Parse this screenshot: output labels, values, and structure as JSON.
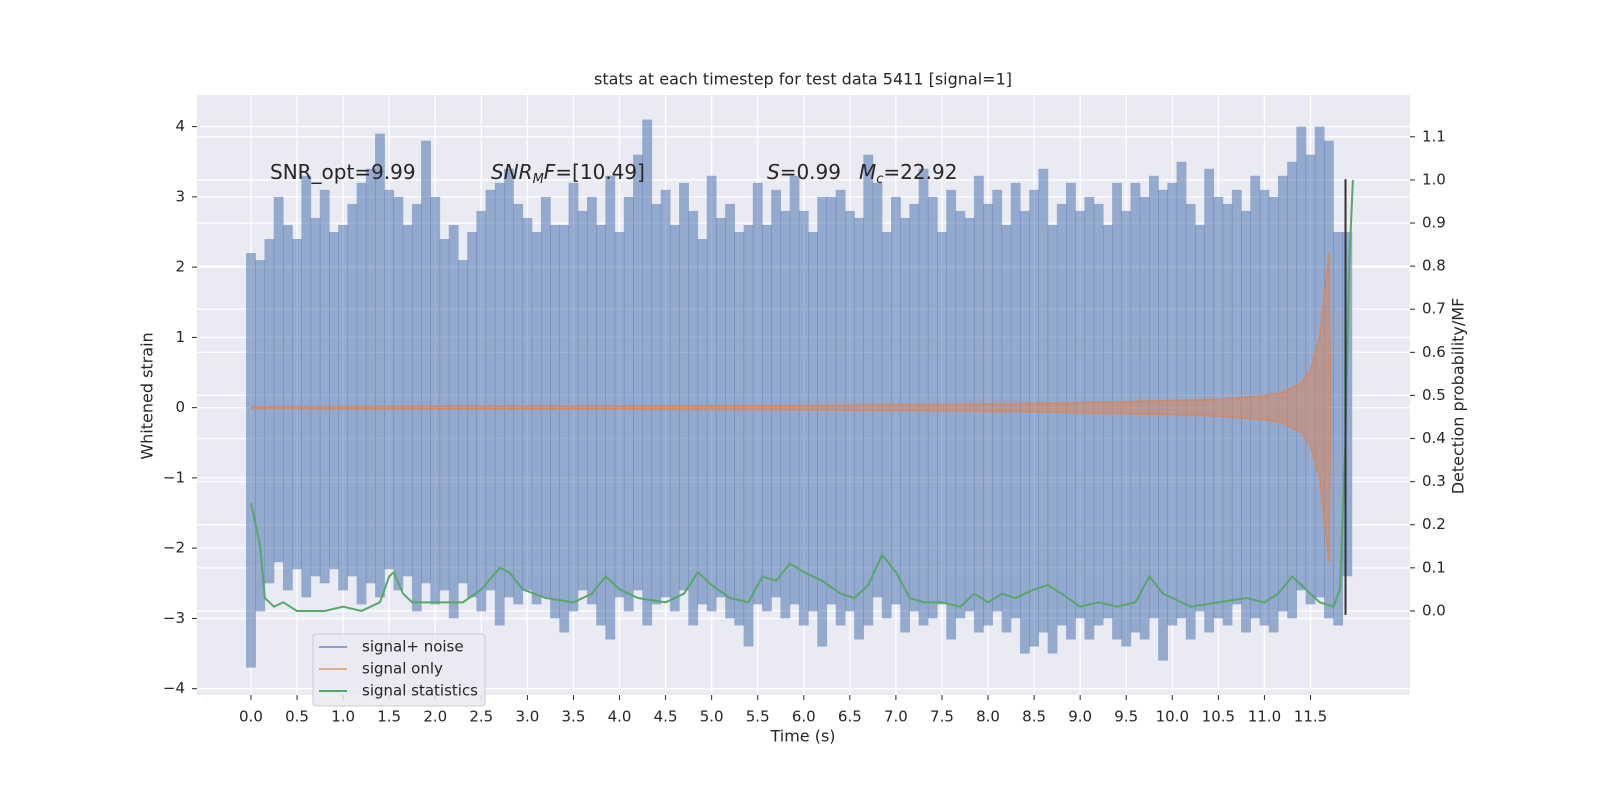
{
  "chart_data": {
    "type": "line",
    "title": "stats at each timestep for test data 5411 [signal=1]",
    "xlabel": "Time (s)",
    "ylabel": "Whitened strain",
    "y2label": "Detection probability/MF",
    "xlim": [
      -0.586,
      12.58
    ],
    "ylim": [
      -4.09,
      4.45
    ],
    "y2lim": [
      -0.195,
      1.197
    ],
    "xticks": [
      {
        "value": 0,
        "label": "0.0"
      },
      0.5,
      {
        "value": 1,
        "label": "1.0"
      },
      1.5,
      {
        "value": 2,
        "label": "2.0"
      },
      2.5,
      {
        "value": 3,
        "label": "3.0"
      },
      3.5,
      {
        "value": 4,
        "label": "4.0"
      },
      4.5,
      {
        "value": 5,
        "label": "5.0"
      },
      5.5,
      {
        "value": 6,
        "label": "6.0"
      },
      6.5,
      {
        "value": 7,
        "label": "7.0"
      },
      7.5,
      {
        "value": 8,
        "label": "8.0"
      },
      8.5,
      {
        "value": 9,
        "label": "9.0"
      },
      9.5,
      {
        "value": 10,
        "label": "10.0"
      },
      10.5,
      {
        "value": 11,
        "label": "11.0"
      },
      11.5
    ],
    "yticks": [
      {
        "value": -4,
        "label": "−4"
      },
      {
        "value": -3,
        "label": "−3"
      },
      {
        "value": -2,
        "label": "−2"
      },
      {
        "value": -1,
        "label": "−1"
      },
      0,
      1,
      2,
      3,
      4
    ],
    "y2ticks": [
      {
        "value": 0,
        "label": "0.0"
      },
      0.1,
      0.2,
      0.3,
      0.4,
      0.5,
      0.6,
      0.7,
      0.8,
      0.9,
      {
        "value": 1,
        "label": "1.0"
      },
      1.1
    ],
    "grid": true,
    "legend": "lower left",
    "annotations": [
      [
        {
          "text": "SNR_opt=9.99"
        }
      ],
      [
        {
          "text": "SNR",
          "italic": true
        },
        {
          "text": "M",
          "italic": true,
          "sub": true
        },
        {
          "text": "F",
          "italic": true
        },
        {
          "text": "=[10.49]"
        }
      ],
      [
        {
          "text": "S",
          "italic": true
        },
        {
          "text": "=0.99"
        }
      ],
      [
        {
          "text": "M",
          "italic": true
        },
        {
          "text": "c",
          "italic": true,
          "sub": true
        },
        {
          "text": "=22.92"
        }
      ]
    ],
    "vline": {
      "x": 11.88,
      "ymin": -2.95,
      "ymax": 3.25,
      "color": "#333333"
    },
    "series": [
      {
        "name": "signal+ noise",
        "color": "#4c72b0",
        "x": [
          0.0,
          0.1,
          0.2,
          0.3,
          0.4,
          0.5,
          0.6,
          0.7,
          0.8,
          0.9,
          1.0,
          1.1,
          1.2,
          1.3,
          1.4,
          1.5,
          1.6,
          1.7,
          1.8,
          1.9,
          2.0,
          2.1,
          2.2,
          2.3,
          2.4,
          2.5,
          2.6,
          2.7,
          2.8,
          2.9,
          3.0,
          3.1,
          3.2,
          3.3,
          3.4,
          3.5,
          3.6,
          3.7,
          3.8,
          3.9,
          4.0,
          4.1,
          4.2,
          4.3,
          4.4,
          4.5,
          4.6,
          4.7,
          4.8,
          4.9,
          5.0,
          5.1,
          5.2,
          5.3,
          5.4,
          5.5,
          5.6,
          5.7,
          5.8,
          5.9,
          6.0,
          6.1,
          6.2,
          6.3,
          6.4,
          6.5,
          6.6,
          6.7,
          6.8,
          6.9,
          7.0,
          7.1,
          7.2,
          7.3,
          7.4,
          7.5,
          7.6,
          7.7,
          7.8,
          7.9,
          8.0,
          8.1,
          8.2,
          8.3,
          8.4,
          8.5,
          8.6,
          8.7,
          8.8,
          8.9,
          9.0,
          9.1,
          9.2,
          9.3,
          9.4,
          9.5,
          9.6,
          9.7,
          9.8,
          9.9,
          10.0,
          10.1,
          10.2,
          10.3,
          10.4,
          10.5,
          10.6,
          10.7,
          10.8,
          10.9,
          11.0,
          11.1,
          11.2,
          11.3,
          11.4,
          11.5,
          11.6,
          11.7,
          11.8,
          11.9
        ],
        "max": [
          2.2,
          2.1,
          2.4,
          3.0,
          2.6,
          2.4,
          3.3,
          2.7,
          3.1,
          2.5,
          2.6,
          2.9,
          3.2,
          3.4,
          3.9,
          3.1,
          3.0,
          2.6,
          2.9,
          3.8,
          3.0,
          2.4,
          2.6,
          2.1,
          2.5,
          2.8,
          3.1,
          3.2,
          3.4,
          2.9,
          2.7,
          2.5,
          3.0,
          2.6,
          2.6,
          3.2,
          2.8,
          3.0,
          2.6,
          3.3,
          2.5,
          3.0,
          3.6,
          4.1,
          2.9,
          3.1,
          2.6,
          3.2,
          2.8,
          2.4,
          3.3,
          2.7,
          2.9,
          2.5,
          2.6,
          3.2,
          2.6,
          3.1,
          2.8,
          3.3,
          2.8,
          2.5,
          3.0,
          3.0,
          3.1,
          2.8,
          2.7,
          3.6,
          3.2,
          2.5,
          3.0,
          2.7,
          2.9,
          3.4,
          3.0,
          2.5,
          3.1,
          2.8,
          2.7,
          3.3,
          2.9,
          3.1,
          2.6,
          3.2,
          2.8,
          3.1,
          3.4,
          2.6,
          2.9,
          3.2,
          2.8,
          3.0,
          2.9,
          2.6,
          3.2,
          2.8,
          3.2,
          3.0,
          3.3,
          3.1,
          3.2,
          3.5,
          2.9,
          2.6,
          3.4,
          3.0,
          2.9,
          3.1,
          2.8,
          3.3,
          3.1,
          3.0,
          3.3,
          3.5,
          4.0,
          3.6,
          4.0,
          3.8,
          2.5,
          2.5
        ],
        "min": [
          -3.7,
          -2.9,
          -2.5,
          -2.2,
          -2.6,
          -2.3,
          -2.7,
          -2.4,
          -2.5,
          -2.3,
          -2.6,
          -2.4,
          -2.8,
          -2.5,
          -2.7,
          -2.3,
          -2.6,
          -2.4,
          -2.9,
          -2.5,
          -2.8,
          -2.6,
          -3.0,
          -2.5,
          -2.7,
          -2.9,
          -2.6,
          -3.1,
          -2.7,
          -2.8,
          -2.6,
          -2.8,
          -2.7,
          -3.0,
          -3.2,
          -2.9,
          -2.6,
          -2.8,
          -3.1,
          -3.3,
          -2.7,
          -2.9,
          -2.6,
          -3.1,
          -2.8,
          -2.7,
          -2.9,
          -2.6,
          -3.1,
          -2.8,
          -2.9,
          -2.7,
          -3.0,
          -3.1,
          -3.4,
          -2.8,
          -2.9,
          -2.7,
          -3.0,
          -2.8,
          -3.1,
          -2.9,
          -3.4,
          -2.8,
          -3.1,
          -2.9,
          -3.3,
          -3.1,
          -2.7,
          -3.0,
          -2.8,
          -3.2,
          -2.9,
          -3.1,
          -3.0,
          -2.8,
          -3.3,
          -3.0,
          -2.9,
          -3.2,
          -3.1,
          -2.9,
          -3.2,
          -3.0,
          -3.5,
          -3.4,
          -3.2,
          -3.5,
          -3.1,
          -3.3,
          -3.0,
          -3.3,
          -3.1,
          -3.0,
          -3.3,
          -3.4,
          -3.2,
          -3.3,
          -3.0,
          -3.6,
          -3.1,
          -3.0,
          -3.3,
          -2.9,
          -3.2,
          -3.0,
          -3.1,
          -2.8,
          -3.2,
          -3.0,
          -3.1,
          -3.2,
          -2.9,
          -3.0,
          -2.6,
          -2.8,
          -2.7,
          -3.0,
          -3.1,
          -2.4
        ]
      },
      {
        "name": "signal only",
        "color": "#dd8452",
        "x": [
          0,
          2,
          4,
          6,
          8,
          9,
          10,
          10.5,
          11,
          11.2,
          11.4,
          11.5,
          11.6,
          11.65,
          11.7,
          11.72
        ],
        "amplitude": [
          0.01,
          0.02,
          0.02,
          0.03,
          0.05,
          0.07,
          0.1,
          0.12,
          0.17,
          0.22,
          0.35,
          0.55,
          1.0,
          1.6,
          2.2,
          0
        ]
      },
      {
        "name": "signal statistics",
        "color": "#55a868",
        "axis": "y2",
        "x": [
          0.0,
          0.1,
          0.15,
          0.25,
          0.35,
          0.5,
          0.8,
          1.0,
          1.2,
          1.4,
          1.5,
          1.55,
          1.65,
          1.75,
          2.0,
          2.3,
          2.5,
          2.7,
          2.8,
          2.95,
          3.2,
          3.5,
          3.7,
          3.85,
          4.0,
          4.2,
          4.5,
          4.7,
          4.85,
          5.0,
          5.2,
          5.4,
          5.55,
          5.7,
          5.85,
          6.0,
          6.2,
          6.4,
          6.55,
          6.7,
          6.85,
          7.0,
          7.15,
          7.3,
          7.5,
          7.7,
          7.85,
          8.0,
          8.15,
          8.3,
          8.5,
          8.65,
          8.8,
          9.0,
          9.2,
          9.4,
          9.6,
          9.75,
          9.9,
          10.2,
          10.5,
          10.8,
          11.0,
          11.15,
          11.3,
          11.45,
          11.6,
          11.75,
          11.82,
          11.88,
          11.92,
          11.96
        ],
        "values": [
          0.25,
          0.15,
          0.03,
          0.01,
          0.02,
          0.0,
          0.0,
          0.01,
          0.0,
          0.02,
          0.08,
          0.09,
          0.04,
          0.02,
          0.02,
          0.02,
          0.05,
          0.1,
          0.09,
          0.05,
          0.03,
          0.02,
          0.04,
          0.08,
          0.05,
          0.03,
          0.02,
          0.04,
          0.09,
          0.06,
          0.03,
          0.02,
          0.08,
          0.07,
          0.11,
          0.09,
          0.07,
          0.04,
          0.03,
          0.06,
          0.13,
          0.09,
          0.03,
          0.02,
          0.02,
          0.01,
          0.04,
          0.02,
          0.04,
          0.03,
          0.05,
          0.06,
          0.04,
          0.01,
          0.02,
          0.01,
          0.02,
          0.08,
          0.04,
          0.01,
          0.02,
          0.03,
          0.02,
          0.04,
          0.08,
          0.05,
          0.02,
          0.01,
          0.05,
          0.4,
          0.8,
          1.0
        ]
      }
    ]
  }
}
